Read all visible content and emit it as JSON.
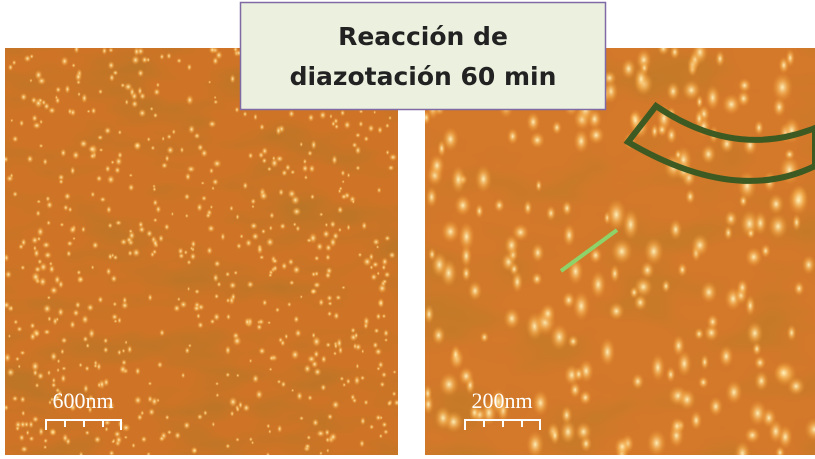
{
  "header": {
    "title_lines": [
      "Reacción de",
      "diazotación 60 min"
    ]
  },
  "panels": [
    {
      "scale_label": "600nm"
    },
    {
      "scale_label": "200nm"
    }
  ]
}
